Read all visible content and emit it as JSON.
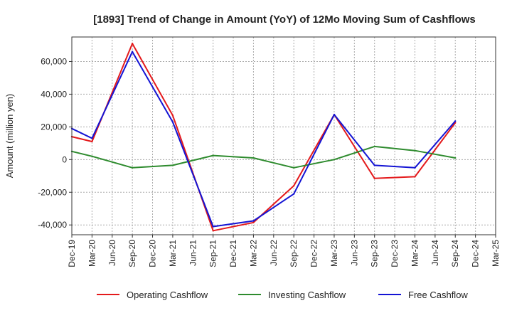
{
  "chart_data": {
    "type": "line",
    "title": "[1893]  Trend of Change in Amount (YoY) of 12Mo Moving Sum of Cashflows",
    "xlabel": "",
    "ylabel": "Amount (million yen)",
    "categories": [
      "Dec-19",
      "Mar-20",
      "Jun-20",
      "Sep-20",
      "Dec-20",
      "Mar-21",
      "Jun-21",
      "Sep-21",
      "Dec-21",
      "Mar-22",
      "Jun-22",
      "Sep-22",
      "Dec-22",
      "Mar-23",
      "Jun-23",
      "Sep-23",
      "Dec-23",
      "Mar-24",
      "Jun-24",
      "Sep-24",
      "Dec-24",
      "Mar-25"
    ],
    "ylim": [
      -46000,
      75000
    ],
    "yticks": [
      -40000,
      -20000,
      0,
      20000,
      40000,
      60000
    ],
    "ytick_labels": [
      "-40,000",
      "-20,000",
      "0",
      "20,000",
      "40,000",
      "60,000"
    ],
    "grid": true,
    "legend_position": "bottom",
    "series": [
      {
        "name": "Operating Cashflow",
        "color": "#e41a1c",
        "values": [
          14000,
          11000,
          null,
          71000,
          null,
          27000,
          null,
          -43500,
          null,
          -38500,
          null,
          -16000,
          null,
          27500,
          null,
          -11500,
          null,
          -10500,
          null,
          22500,
          null,
          null
        ]
      },
      {
        "name": "Investing Cashflow",
        "color": "#2e8b2e",
        "values": [
          5000,
          2000,
          null,
          -5000,
          null,
          -3500,
          null,
          2500,
          null,
          1000,
          null,
          -5000,
          null,
          0,
          null,
          8000,
          null,
          5500,
          null,
          1000,
          null,
          null
        ]
      },
      {
        "name": "Free Cashflow",
        "color": "#1414d4",
        "values": [
          19000,
          13000,
          null,
          66000,
          null,
          23000,
          null,
          -41000,
          null,
          -37500,
          null,
          -21000,
          null,
          27500,
          null,
          -3500,
          null,
          -5000,
          null,
          23500,
          null,
          null
        ]
      }
    ]
  }
}
